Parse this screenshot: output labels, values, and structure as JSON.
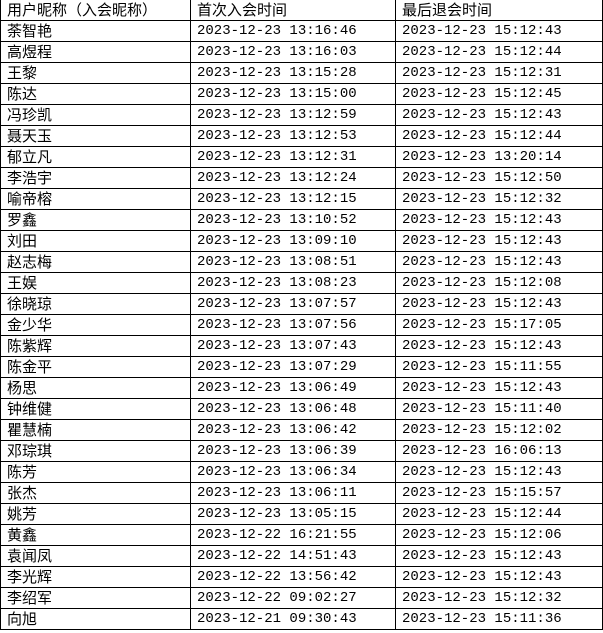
{
  "headers": [
    "用户昵称（入会昵称）",
    "首次入会时间",
    "最后退会时间"
  ],
  "rows": [
    [
      "荼智艳",
      "2023-12-23 13:16:46",
      "2023-12-23 15:12:43"
    ],
    [
      "高煜程",
      "2023-12-23 13:16:03",
      "2023-12-23 15:12:44"
    ],
    [
      "王黎",
      "2023-12-23 13:15:28",
      "2023-12-23 15:12:31"
    ],
    [
      "陈达",
      "2023-12-23 13:15:00",
      "2023-12-23 15:12:45"
    ],
    [
      "冯珍凯",
      "2023-12-23 13:12:59",
      "2023-12-23 15:12:43"
    ],
    [
      "聂天玉",
      "2023-12-23 13:12:53",
      "2023-12-23 15:12:44"
    ],
    [
      "郁立凡",
      "2023-12-23 13:12:31",
      "2023-12-23 13:20:14"
    ],
    [
      "李浩宇",
      "2023-12-23 13:12:24",
      "2023-12-23 15:12:50"
    ],
    [
      "喻帝榕",
      "2023-12-23 13:12:15",
      "2023-12-23 15:12:32"
    ],
    [
      "罗鑫",
      "2023-12-23 13:10:52",
      "2023-12-23 15:12:43"
    ],
    [
      "刘田",
      "2023-12-23 13:09:10",
      "2023-12-23 15:12:43"
    ],
    [
      "赵志梅",
      "2023-12-23 13:08:51",
      "2023-12-23 15:12:43"
    ],
    [
      "王娱",
      "2023-12-23 13:08:23",
      "2023-12-23 15:12:08"
    ],
    [
      "徐晓琼",
      "2023-12-23 13:07:57",
      "2023-12-23 15:12:43"
    ],
    [
      "金少华",
      "2023-12-23 13:07:56",
      "2023-12-23 15:17:05"
    ],
    [
      "陈紫辉",
      "2023-12-23 13:07:43",
      "2023-12-23 15:12:43"
    ],
    [
      "陈金平",
      "2023-12-23 13:07:29",
      "2023-12-23 15:11:55"
    ],
    [
      "杨思",
      "2023-12-23 13:06:49",
      "2023-12-23 15:12:43"
    ],
    [
      "钟维健",
      "2023-12-23 13:06:48",
      "2023-12-23 15:11:40"
    ],
    [
      "瞿慧楠",
      "2023-12-23 13:06:42",
      "2023-12-23 15:12:02"
    ],
    [
      "邓琮琪",
      "2023-12-23 13:06:39",
      "2023-12-23 16:06:13"
    ],
    [
      "陈芳",
      "2023-12-23 13:06:34",
      "2023-12-23 15:12:43"
    ],
    [
      "张杰",
      "2023-12-23 13:06:11",
      "2023-12-23 15:15:57"
    ],
    [
      "姚芳",
      "2023-12-23 13:05:15",
      "2023-12-23 15:12:44"
    ],
    [
      "黄鑫",
      "2023-12-22 16:21:55",
      "2023-12-23 15:12:06"
    ],
    [
      "袁闻凤",
      "2023-12-22 14:51:43",
      "2023-12-23 15:12:43"
    ],
    [
      "李光辉",
      "2023-12-22 13:56:42",
      "2023-12-23 15:12:43"
    ],
    [
      "李绍军",
      "2023-12-22 09:02:27",
      "2023-12-23 15:12:32"
    ],
    [
      "向旭",
      "2023-12-21 09:30:43",
      "2023-12-23 15:11:36"
    ]
  ]
}
